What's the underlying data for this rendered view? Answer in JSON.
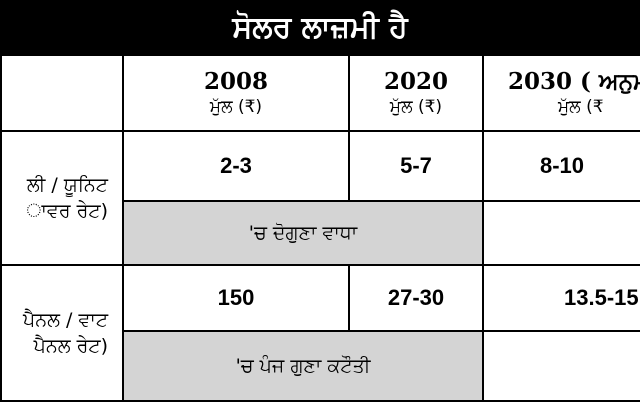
{
  "title": "ਸੋਲਰ ਲਾਜ਼ਮੀ ਹੈ",
  "header": {
    "col1": {
      "year": "2008",
      "sub": "ਮੁੱਲ (₹)"
    },
    "col2": {
      "year": "2020",
      "sub": "ਮੁੱਲ (₹)"
    },
    "col3": {
      "year": "2030 ( ਅਨੁਮ",
      "sub": "ਮੁੱਲ (₹"
    }
  },
  "rows": [
    {
      "label_line1": "ਲੀ / ਯੂਨਿਟ",
      "label_line2": "ਾਵਰ ਰੇਟ)",
      "v2008": "2-3",
      "v2020": "5-7",
      "v2030": "8-10",
      "note": "'ਚ ਦੋਗੁਣਾ ਵਾਧਾ"
    },
    {
      "label_line1": "ਪੈਨਲ / ਵਾਟ",
      "label_line2": "ਪੈਨਲ ਰੇਟ)",
      "v2008": "150",
      "v2020": "27-30",
      "v2030": "13.5-15",
      "note": "'ਚ ਪੰਜ ਗੁਣਾ ਕਟੌਤੀ"
    }
  ],
  "colors": {
    "title_bg": "#000000",
    "note_bg": "#d4d4d4"
  }
}
